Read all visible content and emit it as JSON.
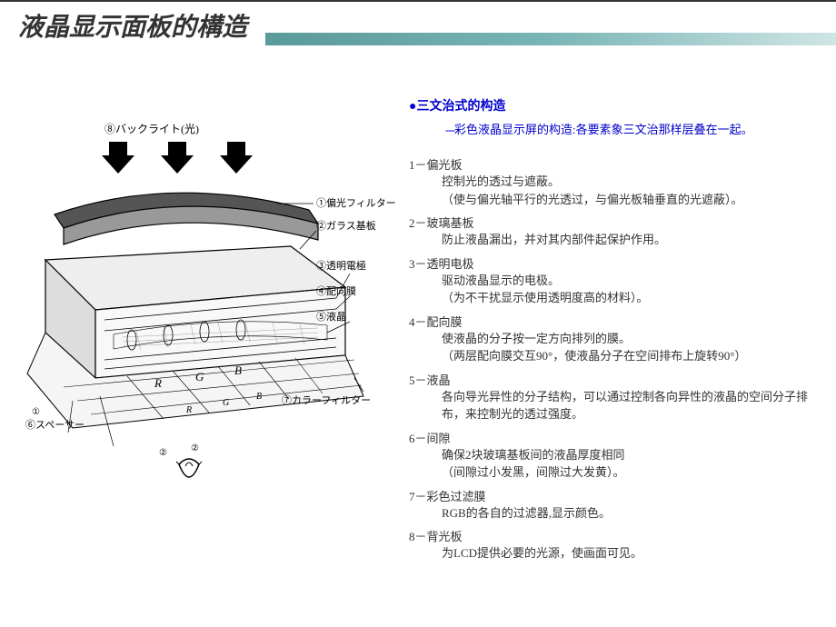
{
  "title": "液晶显示面板的構造",
  "subtitle": {
    "bullet": "●",
    "text": "三文治式的构造",
    "desc_prefix": "---",
    "desc": "彩色液晶显示屏的构造:各要素象三文治那样层叠在一起。"
  },
  "items": [
    {
      "num": "1",
      "name": "偏光板",
      "desc": "控制光的透过与遮蔽。",
      "note": "（使与偏光轴平行的光透过，与偏光板轴垂直的光遮蔽）。"
    },
    {
      "num": "2",
      "name": "玻璃基板",
      "desc": "防止液晶漏出，并对其内部件起保护作用。",
      "note": ""
    },
    {
      "num": "3",
      "name": "透明电极",
      "desc": "驱动液晶显示的电极。",
      "note": "（为不干扰显示使用透明度高的材料）。"
    },
    {
      "num": "4",
      "name": "配向膜",
      "desc": "使液晶的分子按一定方向排列的膜。",
      "note": "（两层配向膜交互90°，使液晶分子在空间排布上旋转90°）"
    },
    {
      "num": "5",
      "name": "液晶",
      "desc": "各向导光异性的分子结构，可以通过控制各向异性的液晶的空间分子排布，来控制光的透过强度。",
      "note": ""
    },
    {
      "num": "6",
      "name": "间隙",
      "desc": "确保2块玻璃基板间的液晶厚度相同",
      "note": "（间隙过小发黑，间隙过大发黄）。"
    },
    {
      "num": "7",
      "name": "彩色过滤膜",
      "desc": "RGB的各自的过滤器,显示颜色。",
      "note": ""
    },
    {
      "num": "8",
      "name": "背光板",
      "desc": "为LCD提供必要的光源，使画面可见。",
      "note": ""
    }
  ],
  "diagram_labels": {
    "l8": "⑧バックライト(光)",
    "l1": "①偏光フィルター",
    "l2": "②ガラス基板",
    "l3": "③透明電極",
    "l4": "④配向膜",
    "l5": "⑤液晶",
    "l7": "⑦カラーフィルター",
    "l6": "⑥スペーサー",
    "r": "R",
    "g": "G",
    "b": "B"
  },
  "colors": {
    "title_color": "#333333",
    "header_gradient_start": "#5a9a9a",
    "header_gradient_end": "#d0e5e5",
    "subtitle_color": "#0000cc",
    "text_color": "#333333",
    "background": "#ffffff"
  }
}
